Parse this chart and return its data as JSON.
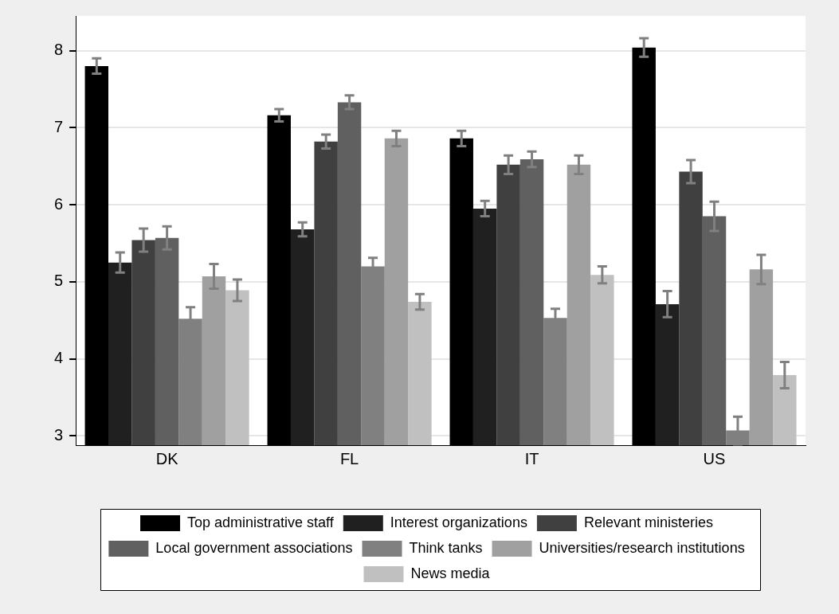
{
  "chart_data": {
    "type": "bar",
    "categories": [
      "DK",
      "FL",
      "IT",
      "US"
    ],
    "series": [
      {
        "name": "Top administrative staff",
        "color": "#000000",
        "values": [
          7.8,
          7.16,
          6.86,
          8.04
        ],
        "errors": [
          0.1,
          0.08,
          0.1,
          0.12
        ]
      },
      {
        "name": "Interest organizations",
        "color": "#202020",
        "values": [
          5.25,
          5.68,
          5.95,
          4.71
        ],
        "errors": [
          0.13,
          0.09,
          0.1,
          0.17
        ]
      },
      {
        "name": "Relevant ministeries",
        "color": "#404040",
        "values": [
          5.54,
          6.82,
          6.52,
          6.43
        ],
        "errors": [
          0.15,
          0.09,
          0.12,
          0.15
        ]
      },
      {
        "name": "Local government associations",
        "color": "#606060",
        "values": [
          5.57,
          7.33,
          6.59,
          5.85
        ],
        "errors": [
          0.15,
          0.09,
          0.1,
          0.19
        ]
      },
      {
        "name": "Think tanks",
        "color": "#808080",
        "values": [
          4.52,
          5.2,
          4.53,
          3.07
        ],
        "errors": [
          0.15,
          0.11,
          0.12,
          0.18
        ]
      },
      {
        "name": "Universities/research institutions",
        "color": "#a0a0a0",
        "values": [
          5.07,
          6.86,
          6.52,
          5.16
        ],
        "errors": [
          0.16,
          0.1,
          0.12,
          0.19
        ]
      },
      {
        "name": "News media",
        "color": "#c0c0c0",
        "values": [
          4.89,
          4.74,
          5.09,
          3.79
        ],
        "errors": [
          0.14,
          0.1,
          0.11,
          0.17
        ]
      }
    ],
    "ylim": [
      2.88,
      8.45
    ],
    "yticks": [
      3,
      4,
      5,
      6,
      7,
      8
    ],
    "grid": "y",
    "legend": "bottom"
  }
}
